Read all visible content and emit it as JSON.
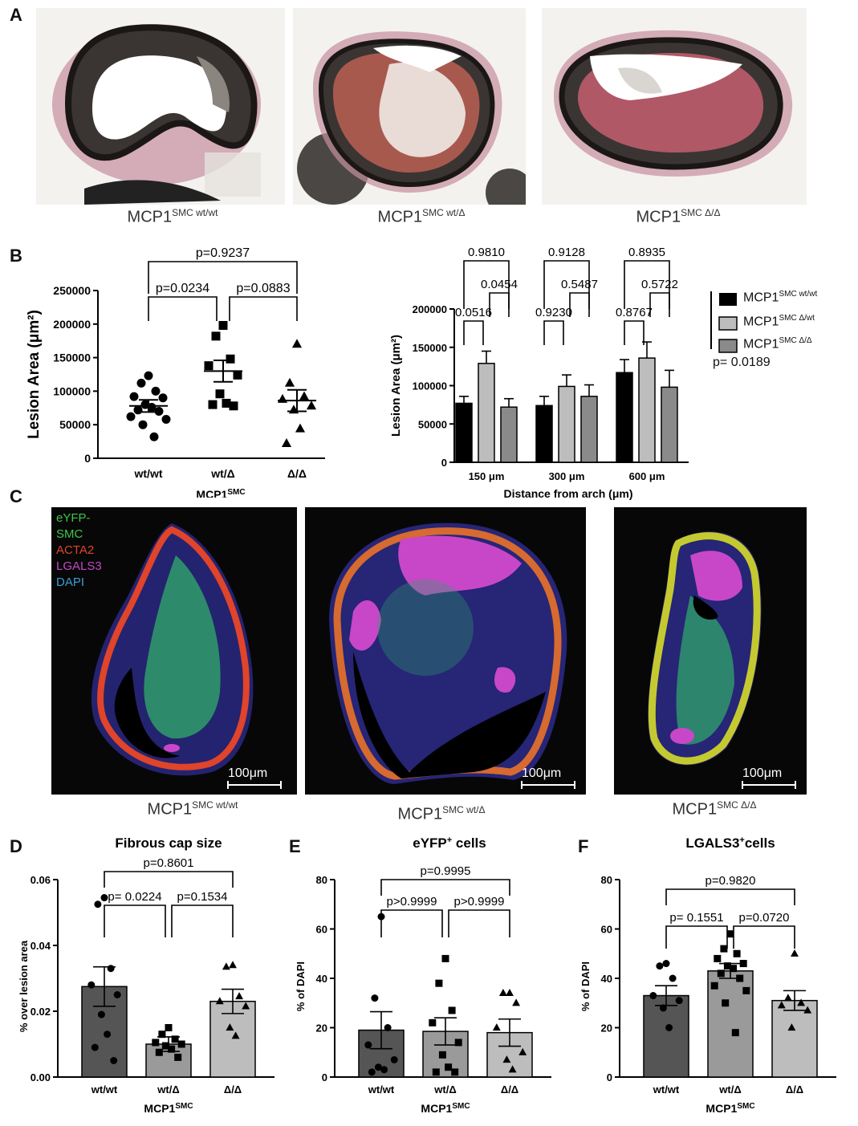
{
  "panel_A": {
    "letter": "A",
    "images": [
      {
        "base": "MCP1",
        "sup": "SMC wt/wt"
      },
      {
        "base": "MCP1",
        "sup": "SMC wt/Δ"
      },
      {
        "base": "MCP1",
        "sup": "SMC Δ/Δ"
      }
    ]
  },
  "panel_B": {
    "letter": "B",
    "left": {
      "ylabel": "Lesion Area (μm²)",
      "yticks": [
        "0",
        "50000",
        "100000",
        "150000",
        "200000",
        "250000"
      ],
      "categories": [
        "wt/wt",
        "wt/Δ",
        "Δ/Δ"
      ],
      "xgroup_base": "MCP1",
      "xgroup_sup": "SMC",
      "pvals": [
        "p=0.9237",
        "p=0.0234",
        "p=0.0883"
      ]
    },
    "right": {
      "ylabel": "Lesion Area (μm²)",
      "yticks": [
        "0",
        "50000",
        "100000",
        "150000",
        "200000"
      ],
      "xticks": [
        "150 μm",
        "300 μm",
        "600 μm"
      ],
      "xlabel": "Distance from arch (μm)",
      "pvals_top": [
        "0.9810",
        "0.9128",
        "0.8935"
      ],
      "pvals_mid": [
        "0.0454",
        "0.5487",
        "0.5722"
      ],
      "pvals_low": [
        "0.0516",
        "0.9230",
        "0.8767"
      ],
      "legend": [
        {
          "base": "MCP1",
          "sup": "SMC wt/wt",
          "color": "#000000"
        },
        {
          "base": "MCP1",
          "sup": "SMC Δ/wt",
          "color": "#bdbdbd"
        },
        {
          "base": "MCP1",
          "sup": "SMC Δ/Δ",
          "color": "#8a8a8a"
        }
      ],
      "legend_p": "p= 0.0189"
    }
  },
  "panel_C": {
    "letter": "C",
    "channels": [
      {
        "label": "eYFP-",
        "color": "#3ec64a"
      },
      {
        "label": "SMC",
        "color": "#3ec64a"
      },
      {
        "label": "ACTA2",
        "color": "#e0442a"
      },
      {
        "label": "LGALS3",
        "color": "#c847c8"
      },
      {
        "label": "DAPI",
        "color": "#3b9fd8"
      }
    ],
    "scalebar": "100μm",
    "images": [
      {
        "base": "MCP1",
        "sup": "SMC wt/wt"
      },
      {
        "base": "MCP1",
        "sup": "SMC wt/Δ"
      },
      {
        "base": "MCP1",
        "sup": "SMC Δ/Δ"
      }
    ]
  },
  "panel_D": {
    "letter": "D",
    "title": "Fibrous cap size",
    "ylabel": "% over lesion area",
    "yticks": [
      "0.00",
      "0.02",
      "0.04",
      "0.06"
    ],
    "categories": [
      "wt/wt",
      "wt/Δ",
      "Δ/Δ"
    ],
    "xgroup_base": "MCP1",
    "xgroup_sup": "SMC",
    "pvals": [
      "p=0.8601",
      "p= 0.0224",
      "p=0.1534"
    ]
  },
  "panel_E": {
    "letter": "E",
    "title_base": "eYFP",
    "title_sup": "+",
    "title_rest": " cells",
    "ylabel": "% of DAPI",
    "yticks": [
      "0",
      "20",
      "40",
      "60",
      "80"
    ],
    "categories": [
      "wt/wt",
      "wt/Δ",
      "Δ/Δ"
    ],
    "xgroup_base": "MCP1",
    "xgroup_sup": "SMC",
    "pvals": [
      "p=0.9995",
      "p>0.9999",
      "p>0.9999"
    ]
  },
  "panel_F": {
    "letter": "F",
    "title_base": "LGALS3",
    "title_sup": "+",
    "title_rest": "cells",
    "ylabel": "% of DAPI",
    "yticks": [
      "0",
      "20",
      "40",
      "60",
      "80"
    ],
    "categories": [
      "wt/wt",
      "wt/Δ",
      "Δ/Δ"
    ],
    "xgroup_base": "MCP1",
    "xgroup_sup": "SMC",
    "pvals": [
      "p=0.9820",
      "p= 0.1551",
      "p=0.0720"
    ]
  },
  "chart_data": [
    {
      "id": "B-left",
      "type": "scatter",
      "ylabel": "Lesion Area (μm²)",
      "ylim": [
        0,
        250000
      ],
      "categories": [
        "wt/wt",
        "wt/Δ",
        "Δ/Δ"
      ],
      "series": [
        {
          "category": "wt/wt",
          "mean": 78000,
          "sem": 9000,
          "points": [
            123000,
            112000,
            100000,
            92000,
            90000,
            80000,
            76000,
            72000,
            70000,
            62000,
            58000,
            50000,
            32000
          ]
        },
        {
          "category": "wt/Δ",
          "mean": 130000,
          "sem": 16000,
          "points": [
            198000,
            182000,
            148000,
            138000,
            124000,
            96000,
            82000,
            80000,
            78000
          ]
        },
        {
          "category": "Δ/Δ",
          "mean": 86000,
          "sem": 16000,
          "points": [
            170000,
            112000,
            92000,
            88000,
            78000,
            72000,
            44000,
            22000
          ]
        }
      ]
    },
    {
      "id": "B-right",
      "type": "bar",
      "ylabel": "Lesion Area (μm²)",
      "xlabel": "Distance from arch (μm)",
      "ylim": [
        0,
        200000
      ],
      "categories": [
        "150 μm",
        "300 μm",
        "600 μm"
      ],
      "series": [
        {
          "name": "MCP1 SMC wt/wt",
          "values": [
            77000,
            74000,
            117000
          ],
          "err": [
            9000,
            12000,
            17000
          ]
        },
        {
          "name": "MCP1 SMC Δ/wt",
          "values": [
            129000,
            99000,
            136000
          ],
          "err": [
            16000,
            15000,
            21000
          ]
        },
        {
          "name": "MCP1 SMC Δ/Δ",
          "values": [
            72000,
            86000,
            98000
          ],
          "err": [
            11000,
            15000,
            22000
          ]
        }
      ]
    },
    {
      "id": "D",
      "type": "bar",
      "title": "Fibrous cap size",
      "ylabel": "% over lesion area",
      "ylim": [
        0,
        0.06
      ],
      "categories": [
        "wt/wt",
        "wt/Δ",
        "Δ/Δ"
      ],
      "values": [
        0.0275,
        0.01,
        0.023
      ],
      "err": [
        0.006,
        0.0022,
        0.0037
      ],
      "points": [
        [
          0.0545,
          0.0525,
          0.033,
          0.028,
          0.025,
          0.019,
          0.013,
          0.009,
          0.005
        ],
        [
          0.015,
          0.013,
          0.0115,
          0.0105,
          0.01,
          0.0095,
          0.0085,
          0.0075,
          0.006
        ],
        [
          0.034,
          0.0335,
          0.0245,
          0.023,
          0.0215,
          0.015,
          0.0125
        ]
      ]
    },
    {
      "id": "E",
      "type": "bar",
      "title": "eYFP+ cells",
      "ylabel": "% of DAPI",
      "ylim": [
        0,
        80
      ],
      "categories": [
        "wt/wt",
        "wt/Δ",
        "Δ/Δ"
      ],
      "values": [
        19,
        18.5,
        18
      ],
      "err": [
        7.5,
        5.5,
        5.5
      ],
      "points": [
        [
          65,
          32,
          20,
          13,
          7,
          4,
          3,
          2
        ],
        [
          48,
          38,
          27,
          22,
          14,
          9,
          4,
          2,
          2
        ],
        [
          34,
          34,
          30,
          20,
          10,
          7,
          3
        ]
      ]
    },
    {
      "id": "F",
      "type": "bar",
      "title": "LGALS3+cells",
      "ylabel": "% of DAPI",
      "ylim": [
        0,
        80
      ],
      "categories": [
        "wt/wt",
        "wt/Δ",
        "Δ/Δ"
      ],
      "values": [
        33,
        43,
        31
      ],
      "err": [
        4,
        3,
        4
      ],
      "points": [
        [
          46,
          45,
          40,
          33,
          31,
          28,
          20
        ],
        [
          58,
          52,
          50,
          48,
          46,
          45,
          44,
          42,
          40,
          37,
          35,
          30,
          18
        ],
        [
          50,
          32,
          30,
          29,
          27,
          20
        ]
      ]
    }
  ]
}
